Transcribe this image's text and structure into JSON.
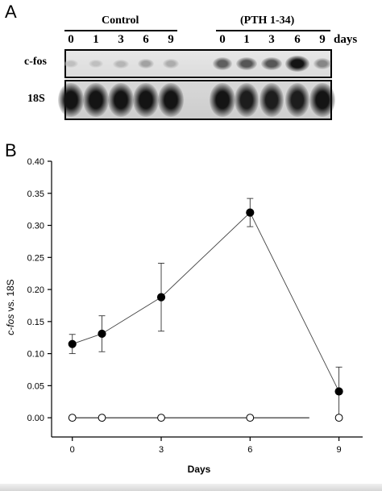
{
  "panel_a": {
    "letter": "A",
    "group_control": "Control",
    "group_pth": "(PTH 1-34)",
    "days_label": "days",
    "control_lanes": [
      "0",
      "1",
      "3",
      "6",
      "9"
    ],
    "pth_lanes": [
      "0",
      "1",
      "3",
      "6",
      "9"
    ],
    "row_labels": [
      "c-fos",
      "18S"
    ],
    "cfos_control_intensity": [
      0.05,
      0.05,
      0.1,
      0.2,
      0.15
    ],
    "cfos_pth_intensity": [
      0.55,
      0.6,
      0.6,
      0.95,
      0.35
    ],
    "s18_control_intensity": [
      0.95,
      0.95,
      0.95,
      0.95,
      0.95
    ],
    "s18_pth_intensity": [
      0.95,
      0.9,
      0.9,
      0.9,
      0.95
    ]
  },
  "panel_b": {
    "letter": "B"
  },
  "chart_data": {
    "type": "line",
    "title": "",
    "xlabel": "Days",
    "ylabel_italic": "c-fos",
    "ylabel_rest": " vs. 18S",
    "xlim": [
      -0.7,
      9.8
    ],
    "ylim": [
      -0.03,
      0.4
    ],
    "x_ticks": [
      0,
      3,
      6,
      9
    ],
    "x_tick_labels": [
      "0",
      "3",
      "6",
      "9"
    ],
    "y_ticks": [
      0.0,
      0.05,
      0.1,
      0.15,
      0.2,
      0.25,
      0.3,
      0.35,
      0.4
    ],
    "y_tick_labels": [
      "0.00",
      "0.05",
      "0.10",
      "0.15",
      "0.20",
      "0.25",
      "0.30",
      "0.35",
      "0.40"
    ],
    "series": [
      {
        "marker": "filled-circle",
        "x": [
          0,
          1,
          3,
          6,
          9
        ],
        "y": [
          0.115,
          0.131,
          0.188,
          0.32,
          0.041
        ],
        "error": [
          0.015,
          0.028,
          0.053,
          0.022,
          0.038
        ]
      },
      {
        "marker": "open-circle",
        "x": [
          0,
          1,
          3,
          6,
          9
        ],
        "y": [
          0.0,
          0.0,
          0.0,
          0.0,
          0.0
        ],
        "error": [
          0,
          0,
          0,
          0,
          0
        ],
        "line_end_x": 8.0
      }
    ]
  }
}
